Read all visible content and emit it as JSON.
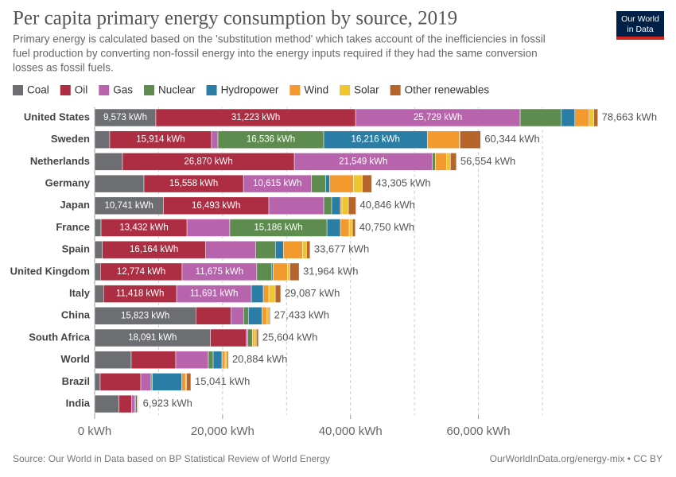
{
  "chart_data": {
    "type": "stacked-bar-horizontal",
    "title": "Per capita primary energy consumption by source, 2019",
    "subtitle": [
      "Primary energy is calculated based on the 'substitution method' which takes account of the inefficiencies in fossil",
      "fuel production by converting non-fossil energy into the energy inputs required if they had the same conversion",
      "losses as fossil fuels."
    ],
    "logo": [
      "Our World",
      "in Data"
    ],
    "source": "Source: Our World in Data based on BP Statistical Review of World Energy",
    "url": "OurWorldInData.org/energy-mix • CC BY",
    "categories": [
      "United States",
      "Sweden",
      "Netherlands",
      "Germany",
      "Japan",
      "France",
      "Spain",
      "United Kingdom",
      "Italy",
      "China",
      "South Africa",
      "World",
      "Brazil",
      "India"
    ],
    "series": [
      {
        "name": "Coal",
        "color": "#6d6e71",
        "values": [
          9573,
          2360,
          4350,
          7710,
          10741,
          1000,
          1200,
          900,
          1400,
          15823,
          18091,
          5720,
          870,
          3800
        ],
        "value_labels": [
          "9,573 kWh",
          null,
          null,
          null,
          "10,741 kWh",
          null,
          null,
          null,
          null,
          "15,823 kWh",
          "18,091 kWh",
          null,
          null,
          null
        ]
      },
      {
        "name": "Oil",
        "color": "#ad2e42",
        "values": [
          31223,
          15914,
          26870,
          15558,
          16493,
          13432,
          16164,
          12774,
          11418,
          5470,
          5600,
          6960,
          6340,
          1990
        ],
        "value_labels": [
          "31,223 kWh",
          "15,914 kWh",
          "26,870 kWh",
          "15,558 kWh",
          "16,493 kWh",
          "13,432 kWh",
          "16,164 kWh",
          "12,774 kWh",
          "11,418 kWh",
          null,
          null,
          null,
          null,
          null
        ]
      },
      {
        "name": "Gas",
        "color": "#b764ad",
        "values": [
          25729,
          1000,
          21549,
          10615,
          8580,
          6700,
          7800,
          11675,
          11691,
          1990,
          250,
          5100,
          1620,
          450
        ],
        "value_labels": [
          "25,729 kWh",
          null,
          "21,549 kWh",
          "10,615 kWh",
          null,
          null,
          null,
          "11,675 kWh",
          "11,691 kWh",
          null,
          null,
          null,
          null,
          null
        ]
      },
      {
        "name": "Nuclear",
        "color": "#5d8c4e",
        "values": [
          6450,
          16536,
          480,
          2240,
          1240,
          15186,
          3100,
          2360,
          0,
          750,
          750,
          750,
          200,
          150
        ],
        "value_labels": [
          null,
          "16,536 kWh",
          null,
          null,
          null,
          "15,186 kWh",
          null,
          null,
          null,
          null,
          null,
          null,
          null,
          null
        ]
      },
      {
        "name": "Hydropower",
        "color": "#2a7ea6",
        "values": [
          2100,
          16216,
          10,
          620,
          1370,
          2110,
          1250,
          200,
          1860,
          2110,
          30,
          1370,
          4600,
          250
        ],
        "value_labels": [
          null,
          "16,216 kWh",
          null,
          null,
          null,
          null,
          null,
          null,
          null,
          null,
          null,
          null,
          null,
          null
        ]
      },
      {
        "name": "Wind",
        "color": "#f29a2e",
        "values": [
          2230,
          4980,
          1740,
          3730,
          250,
          1370,
          2990,
          2240,
          870,
          750,
          250,
          500,
          620,
          150
        ]
      },
      {
        "name": "Solar",
        "color": "#eec52f",
        "values": [
          750,
          100,
          620,
          1370,
          1000,
          500,
          620,
          370,
          1000,
          370,
          300,
          250,
          100,
          80
        ]
      },
      {
        "name": "Other renewables",
        "color": "#b5652a",
        "values": [
          608,
          3238,
          935,
          1462,
          1172,
          452,
          553,
          1445,
          848,
          170,
          333,
          234,
          691,
          53
        ]
      }
    ],
    "totals": [
      78663,
      60344,
      56554,
      43305,
      40846,
      40750,
      33677,
      31964,
      29087,
      27433,
      25604,
      20884,
      15041,
      6923
    ],
    "total_labels": [
      "78,663 kWh",
      "60,344 kWh",
      "56,554 kWh",
      "43,305 kWh",
      "40,846 kWh",
      "40,750 kWh",
      "33,677 kWh",
      "31,964 kWh",
      "29,087 kWh",
      "27,433 kWh",
      "25,604 kWh",
      "20,884 kWh",
      "15,041 kWh",
      "6,923 kWh"
    ],
    "xlim": [
      0,
      70000
    ],
    "xticks": [
      {
        "value": 0,
        "label": "0 kWh"
      },
      {
        "value": 20000,
        "label": "20,000 kWh"
      },
      {
        "value": 40000,
        "label": "40,000 kWh"
      },
      {
        "value": 60000,
        "label": "60,000 kWh"
      }
    ],
    "grid_lines": [
      10000,
      20000,
      30000,
      40000,
      50000,
      60000,
      70000
    ],
    "grid": true
  }
}
